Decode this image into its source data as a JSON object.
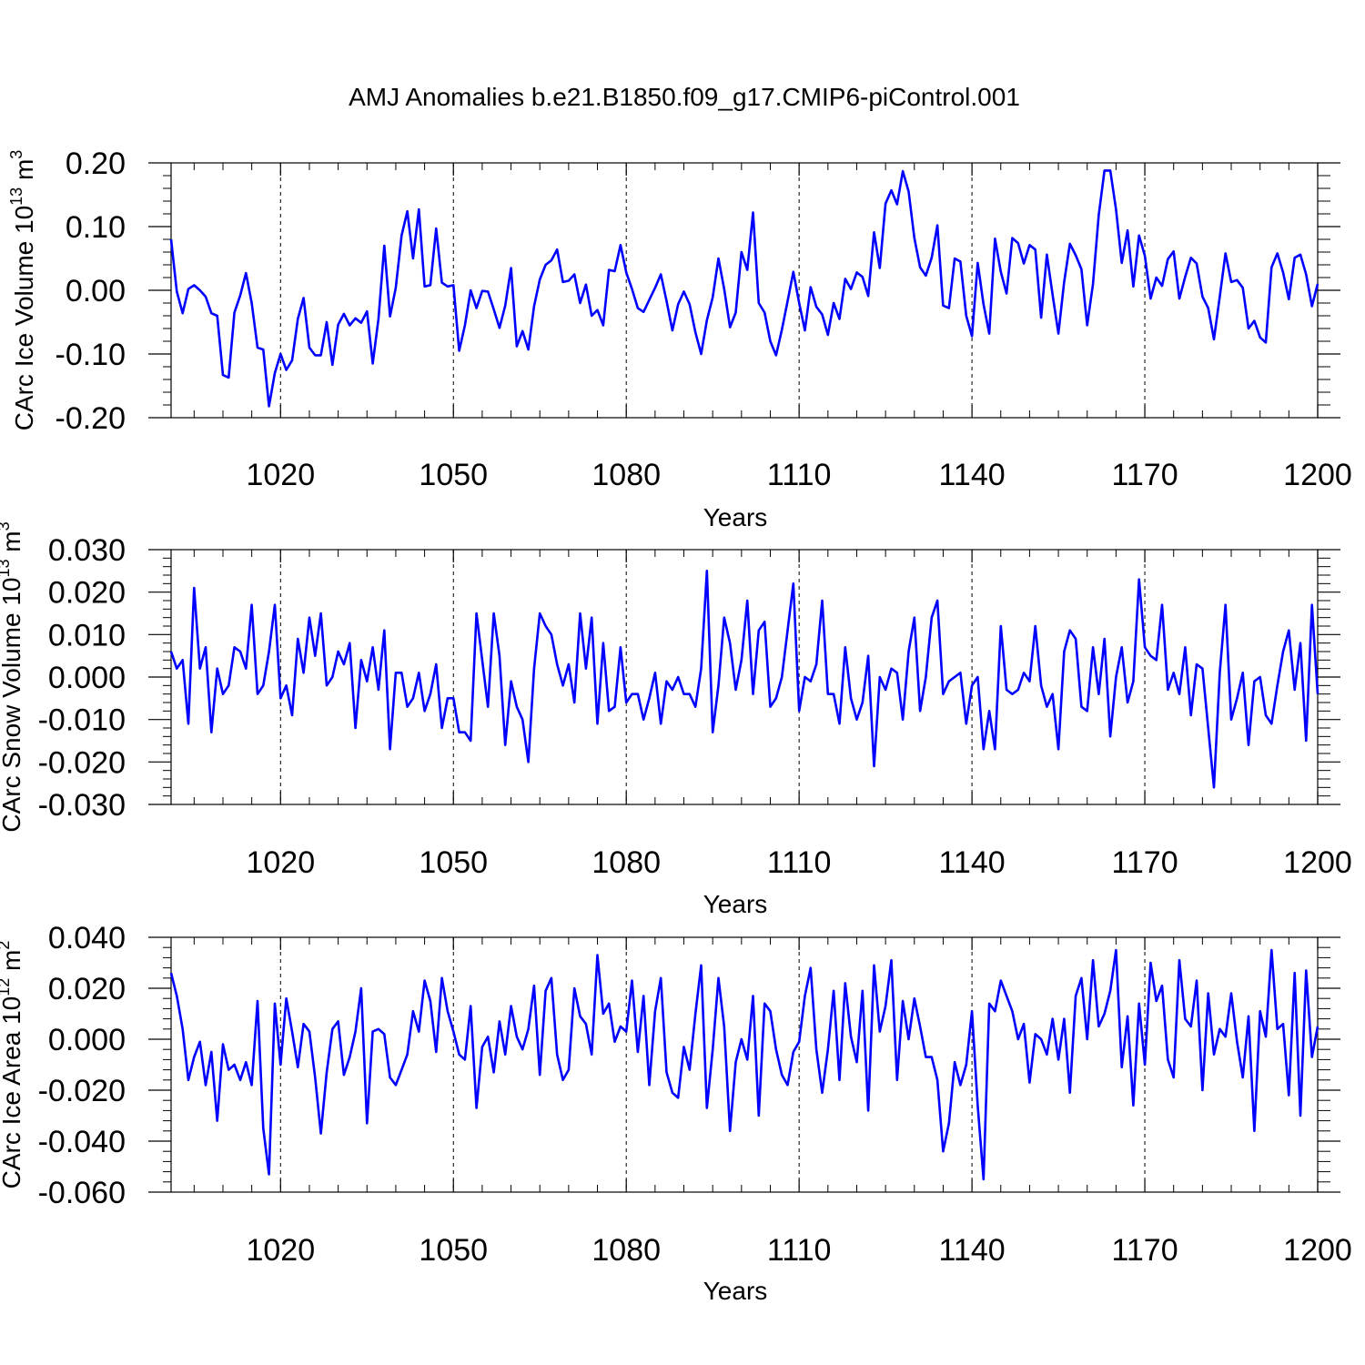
{
  "title": "AMJ Anomalies b.e21.B1850.f09_g17.CMIP6-piControl.001",
  "line_color": "#0000ff",
  "chart_data": [
    {
      "type": "line",
      "name": "ice-volume",
      "ylabel": "CArc Ice Volume 10",
      "ylabel_exp": "13",
      "ylabel_unit": "m",
      "ylabel_unit_exp": "3",
      "xlabel": "Years",
      "xlim": [
        1001,
        1200
      ],
      "ylim": [
        -0.2,
        0.2
      ],
      "xticks": [
        1020,
        1050,
        1080,
        1110,
        1140,
        1170,
        1200
      ],
      "yticks": [
        -0.2,
        -0.1,
        0.0,
        0.1,
        0.2
      ],
      "ytick_labels": [
        "-0.20",
        "-0.10",
        "0.00",
        "0.10",
        "0.20"
      ],
      "grid": "x-dashed",
      "x_start": 1001,
      "values": [
        0.08,
        -0.002,
        -0.036,
        0.002,
        0.008,
        0.0,
        -0.01,
        -0.036,
        -0.04,
        -0.133,
        -0.137,
        -0.035,
        -0.008,
        0.027,
        -0.02,
        -0.09,
        -0.093,
        -0.182,
        -0.13,
        -0.1,
        -0.125,
        -0.11,
        -0.045,
        -0.012,
        -0.09,
        -0.102,
        -0.102,
        -0.05,
        -0.117,
        -0.054,
        -0.037,
        -0.055,
        -0.044,
        -0.051,
        -0.033,
        -0.115,
        -0.045,
        0.07,
        -0.041,
        0.004,
        0.086,
        0.124,
        0.05,
        0.127,
        0.006,
        0.008,
        0.097,
        0.012,
        0.006,
        0.008,
        -0.095,
        -0.055,
        -0.0,
        -0.028,
        -0.001,
        -0.002,
        -0.03,
        -0.059,
        -0.024,
        0.035,
        -0.088,
        -0.064,
        -0.093,
        -0.025,
        0.017,
        0.04,
        0.047,
        0.064,
        0.013,
        0.015,
        0.025,
        -0.02,
        0.009,
        -0.04,
        -0.031,
        -0.055,
        0.032,
        0.03,
        0.071,
        0.028,
        0.002,
        -0.028,
        -0.034,
        -0.015,
        0.004,
        0.025,
        -0.017,
        -0.063,
        -0.022,
        -0.002,
        -0.022,
        -0.066,
        -0.1,
        -0.047,
        -0.011,
        0.05,
        0.002,
        -0.058,
        -0.035,
        0.06,
        0.032,
        0.122,
        -0.02,
        -0.035,
        -0.08,
        -0.102,
        -0.062,
        -0.017,
        0.029,
        -0.02,
        -0.063,
        0.005,
        -0.026,
        -0.038,
        -0.07,
        -0.02,
        -0.045,
        0.018,
        0.002,
        0.028,
        0.021,
        -0.009,
        0.091,
        0.035,
        0.136,
        0.157,
        0.135,
        0.187,
        0.155,
        0.082,
        0.036,
        0.023,
        0.051,
        0.102,
        -0.024,
        -0.028,
        0.05,
        0.045,
        -0.04,
        -0.072,
        0.043,
        -0.022,
        -0.068,
        0.081,
        0.029,
        -0.005,
        0.082,
        0.074,
        0.042,
        0.071,
        0.064,
        -0.043,
        0.056,
        -0.007,
        -0.068,
        0.013,
        0.073,
        0.055,
        0.033,
        -0.055,
        0.01,
        0.118,
        0.188,
        0.188,
        0.127,
        0.043,
        0.094,
        0.006,
        0.086,
        0.054,
        -0.013,
        0.02,
        0.007,
        0.049,
        0.061,
        -0.013,
        0.021,
        0.051,
        0.042,
        -0.01,
        -0.028,
        -0.077,
        -0.01,
        0.058,
        0.013,
        0.016,
        0.004,
        -0.06,
        -0.048,
        -0.074,
        -0.082,
        0.036,
        0.058,
        0.028,
        -0.014,
        0.051,
        0.056,
        0.025,
        -0.025,
        0.01
      ]
    },
    {
      "type": "line",
      "name": "snow-volume",
      "ylabel": "CArc Snow Volume 10",
      "ylabel_exp": "13",
      "ylabel_unit": "m",
      "ylabel_unit_exp": "3",
      "xlabel": "Years",
      "xlim": [
        1001,
        1200
      ],
      "ylim": [
        -0.03,
        0.03
      ],
      "xticks": [
        1020,
        1050,
        1080,
        1110,
        1140,
        1170,
        1200
      ],
      "yticks": [
        -0.03,
        -0.02,
        -0.01,
        0.0,
        0.01,
        0.02,
        0.03
      ],
      "ytick_labels": [
        "-0.030",
        "-0.020",
        "-0.010",
        "0.000",
        "0.010",
        "0.020",
        "0.030"
      ],
      "grid": "x-dashed",
      "x_start": 1001,
      "values": [
        0.006,
        0.002,
        0.004,
        -0.011,
        0.021,
        0.002,
        0.007,
        -0.013,
        0.002,
        -0.004,
        -0.002,
        0.007,
        0.006,
        0.002,
        0.017,
        -0.004,
        -0.002,
        0.006,
        0.017,
        -0.005,
        -0.002,
        -0.009,
        0.009,
        0.001,
        0.014,
        0.005,
        0.015,
        -0.002,
        0.0,
        0.006,
        0.003,
        0.008,
        -0.012,
        0.004,
        -0.001,
        0.007,
        -0.003,
        0.011,
        -0.017,
        0.001,
        0.001,
        -0.007,
        -0.005,
        0.001,
        -0.008,
        -0.004,
        0.003,
        -0.012,
        -0.005,
        -0.005,
        -0.013,
        -0.013,
        -0.015,
        0.015,
        0.004,
        -0.007,
        0.015,
        0.005,
        -0.016,
        -0.001,
        -0.007,
        -0.01,
        -0.02,
        0.002,
        0.015,
        0.012,
        0.01,
        0.003,
        -0.002,
        0.003,
        -0.006,
        0.015,
        0.002,
        0.014,
        -0.011,
        0.008,
        -0.008,
        -0.007,
        0.007,
        -0.006,
        -0.004,
        -0.004,
        -0.01,
        -0.005,
        0.001,
        -0.011,
        -0.001,
        -0.003,
        0.0,
        -0.004,
        -0.004,
        -0.007,
        0.002,
        0.025,
        -0.013,
        -0.002,
        0.014,
        0.008,
        -0.003,
        0.004,
        0.018,
        -0.004,
        0.011,
        0.013,
        -0.007,
        -0.005,
        0.0,
        0.011,
        0.022,
        -0.008,
        0.0,
        -0.001,
        0.003,
        0.018,
        -0.004,
        -0.004,
        -0.011,
        0.007,
        -0.005,
        -0.01,
        -0.006,
        0.005,
        -0.021,
        0.0,
        -0.003,
        0.002,
        0.001,
        -0.01,
        0.006,
        0.014,
        -0.008,
        0.0,
        0.014,
        0.018,
        -0.004,
        -0.001,
        0.0,
        0.001,
        -0.011,
        -0.002,
        0.0,
        -0.017,
        -0.008,
        -0.017,
        0.012,
        -0.003,
        -0.004,
        -0.003,
        0.001,
        -0.001,
        0.012,
        -0.002,
        -0.007,
        -0.004,
        -0.017,
        0.006,
        0.011,
        0.009,
        -0.007,
        -0.008,
        0.007,
        -0.004,
        0.009,
        -0.014,
        0.0,
        0.007,
        -0.006,
        -0.001,
        0.023,
        0.007,
        0.005,
        0.004,
        0.017,
        -0.003,
        0.001,
        -0.004,
        0.007,
        -0.009,
        0.003,
        0.002,
        -0.012,
        -0.026,
        0.001,
        0.017,
        -0.01,
        -0.005,
        0.001,
        -0.016,
        -0.001,
        0.0,
        -0.009,
        -0.011,
        -0.002,
        0.006,
        0.011,
        -0.003,
        0.008,
        -0.015,
        0.017,
        -0.004
      ]
    },
    {
      "type": "line",
      "name": "ice-area",
      "ylabel": "CArc Ice Area 10",
      "ylabel_exp": "12",
      "ylabel_unit": "m",
      "ylabel_unit_exp": "2",
      "xlabel": "Years",
      "xlim": [
        1001,
        1200
      ],
      "ylim": [
        -0.06,
        0.04
      ],
      "xticks": [
        1020,
        1050,
        1080,
        1110,
        1140,
        1170,
        1200
      ],
      "yticks": [
        -0.06,
        -0.04,
        -0.02,
        0.0,
        0.02,
        0.04
      ],
      "ytick_labels": [
        "-0.060",
        "-0.040",
        "-0.020",
        "0.000",
        "0.020",
        "0.040"
      ],
      "grid": "x-dashed",
      "x_start": 1001,
      "values": [
        0.026,
        0.017,
        0.004,
        -0.016,
        -0.007,
        -0.001,
        -0.018,
        -0.005,
        -0.032,
        -0.002,
        -0.012,
        -0.01,
        -0.016,
        -0.009,
        -0.018,
        0.015,
        -0.035,
        -0.053,
        0.014,
        -0.01,
        0.016,
        0.003,
        -0.011,
        0.006,
        0.003,
        -0.015,
        -0.037,
        -0.013,
        0.004,
        0.007,
        -0.014,
        -0.007,
        0.003,
        0.02,
        -0.033,
        0.003,
        0.004,
        0.002,
        -0.015,
        -0.018,
        -0.012,
        -0.006,
        0.011,
        0.003,
        0.023,
        0.015,
        -0.005,
        0.024,
        0.011,
        0.003,
        -0.006,
        -0.008,
        0.013,
        -0.027,
        -0.003,
        0.001,
        -0.013,
        0.007,
        -0.006,
        0.013,
        0.001,
        -0.004,
        0.004,
        0.021,
        -0.014,
        0.019,
        0.024,
        -0.006,
        -0.016,
        -0.012,
        0.02,
        0.009,
        0.006,
        -0.006,
        0.033,
        0.01,
        0.014,
        -0.001,
        0.005,
        0.003,
        0.023,
        -0.005,
        0.017,
        -0.018,
        0.011,
        0.024,
        -0.013,
        -0.021,
        -0.023,
        -0.003,
        -0.012,
        0.01,
        0.029,
        -0.027,
        -0.004,
        0.024,
        0.005,
        -0.036,
        -0.009,
        0.0,
        -0.008,
        0.017,
        -0.03,
        0.014,
        0.011,
        -0.004,
        -0.014,
        -0.018,
        -0.005,
        -0.001,
        0.017,
        0.028,
        -0.004,
        -0.021,
        -0.004,
        0.019,
        -0.016,
        0.022,
        0.001,
        -0.009,
        0.019,
        -0.028,
        0.029,
        0.003,
        0.013,
        0.031,
        -0.016,
        0.015,
        0.0,
        0.016,
        0.005,
        -0.007,
        -0.007,
        -0.016,
        -0.044,
        -0.033,
        -0.009,
        -0.018,
        -0.01,
        0.011,
        -0.026,
        -0.055,
        0.014,
        0.011,
        0.023,
        0.017,
        0.011,
        0.0,
        0.006,
        -0.017,
        0.002,
        0.0,
        -0.006,
        0.008,
        -0.008,
        0.008,
        -0.021,
        0.017,
        0.024,
        0.0,
        0.031,
        0.005,
        0.01,
        0.019,
        0.035,
        -0.011,
        0.009,
        -0.026,
        0.014,
        -0.01,
        0.03,
        0.015,
        0.021,
        -0.008,
        -0.015,
        0.031,
        0.008,
        0.005,
        0.023,
        -0.02,
        0.018,
        -0.006,
        0.004,
        0.001,
        0.018,
        -0.001,
        -0.015,
        0.009,
        -0.036,
        0.011,
        0.001,
        0.035,
        0.004,
        0.006,
        -0.022,
        0.026,
        -0.03,
        0.027,
        -0.007,
        0.005
      ]
    }
  ]
}
